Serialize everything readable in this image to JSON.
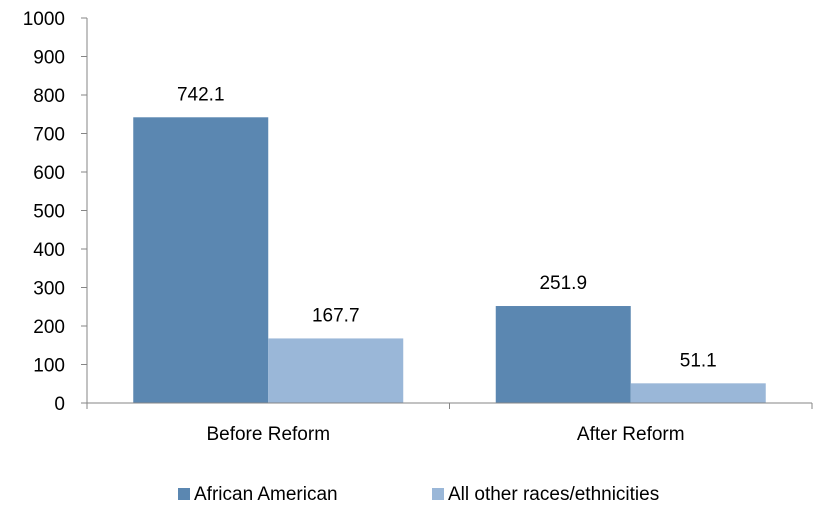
{
  "chart_data": {
    "type": "bar",
    "title": "",
    "xlabel": "",
    "ylabel": "",
    "categories": [
      "Before Reform",
      "After Reform"
    ],
    "series": [
      {
        "name": "African American",
        "values": [
          742.1,
          251.9
        ],
        "color": "#5b87b1"
      },
      {
        "name": "All other races/ethnicities",
        "values": [
          167.7,
          51.1
        ],
        "color": "#9ab7d8"
      }
    ],
    "value_labels": [
      [
        "742.1",
        "251.9"
      ],
      [
        "167.7",
        "51.1"
      ]
    ],
    "ylim": [
      0,
      1000
    ],
    "yticks": [
      0,
      100,
      200,
      300,
      400,
      500,
      600,
      700,
      800,
      900,
      1000
    ],
    "grid": false,
    "legend_position": "bottom"
  }
}
